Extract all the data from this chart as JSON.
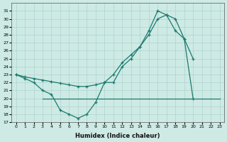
{
  "background_color": "#ceeae5",
  "grid_color": "#aed4ce",
  "line_color": "#1a7a6e",
  "xlabel": "Humidex (Indice chaleur)",
  "ylim": [
    17,
    32
  ],
  "xlim": [
    -0.5,
    23.5
  ],
  "yticks": [
    17,
    18,
    19,
    20,
    21,
    22,
    23,
    24,
    25,
    26,
    27,
    28,
    29,
    30,
    31
  ],
  "xticks": [
    0,
    1,
    2,
    3,
    4,
    5,
    6,
    7,
    8,
    9,
    10,
    11,
    12,
    13,
    14,
    15,
    16,
    17,
    18,
    19,
    20,
    21,
    22,
    23
  ],
  "curve1_x": [
    0,
    1,
    2,
    3,
    4,
    5,
    6,
    7,
    8,
    9,
    10,
    11,
    12,
    13,
    14,
    15,
    16,
    17,
    18,
    19,
    20
  ],
  "curve1_y": [
    23,
    22.5,
    22,
    21,
    20.5,
    18.5,
    18,
    17.5,
    18,
    19.5,
    22,
    22,
    24,
    25,
    26.5,
    28.5,
    31,
    30.5,
    30,
    27.5,
    25
  ],
  "curve2_x": [
    0,
    1,
    2,
    3,
    4,
    5,
    6,
    7,
    8,
    9,
    10,
    11,
    12,
    13,
    14,
    15,
    16,
    17,
    18,
    19,
    20,
    21,
    22,
    23
  ],
  "curve2_y": [
    23,
    22.7,
    22.5,
    22.3,
    22.1,
    21.9,
    21.7,
    21.5,
    21.5,
    21.7,
    22,
    23,
    24.5,
    25.5,
    26.5,
    28,
    30,
    30.5,
    28.5,
    27.5,
    20,
    null,
    null,
    null
  ],
  "curve3_x": [
    3,
    19,
    20,
    23
  ],
  "curve3_y": [
    20,
    20,
    20,
    20
  ]
}
